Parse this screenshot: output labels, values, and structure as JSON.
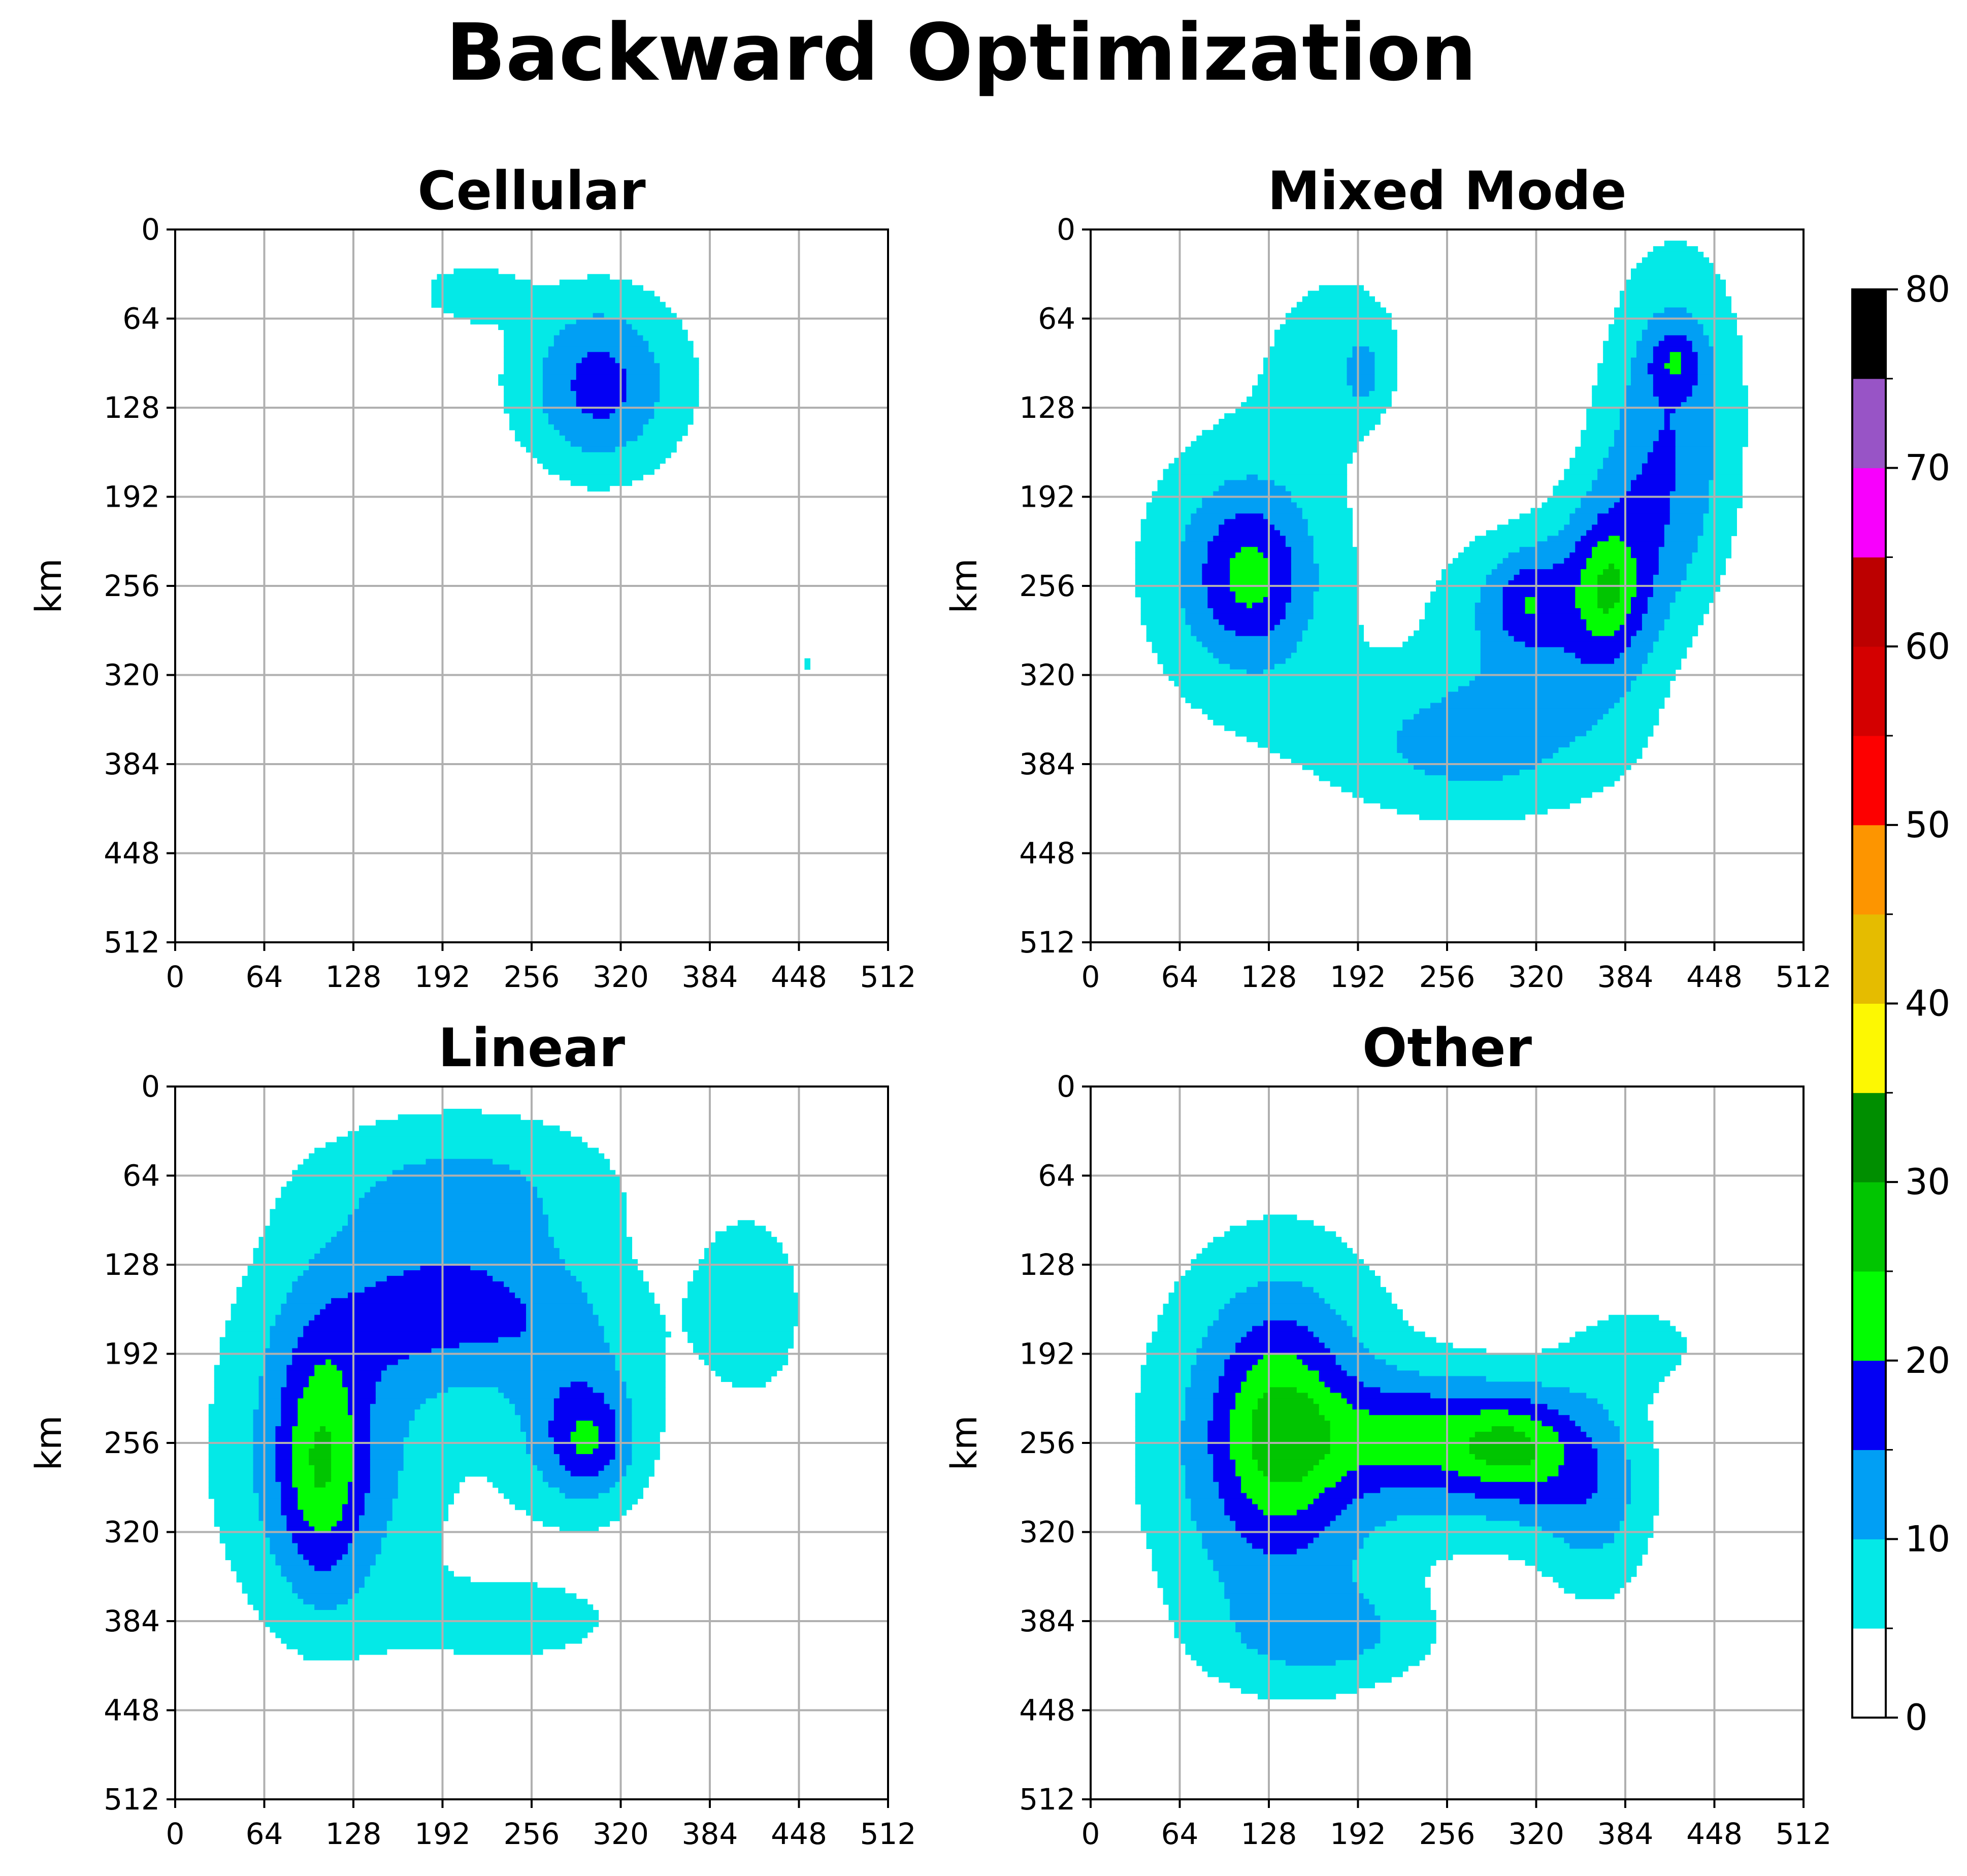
{
  "figure": {
    "title": "Backward Optimization"
  },
  "chart_data": {
    "type": "heatmap",
    "grid": true,
    "colorbar": {
      "ticks": [
        0,
        10,
        20,
        30,
        40,
        50,
        60,
        70,
        80
      ],
      "levels": [
        0,
        5,
        10,
        15,
        20,
        25,
        30,
        35,
        40,
        45,
        50,
        55,
        60,
        65,
        70,
        75,
        80
      ],
      "colors": [
        "#ffffff",
        "#04e9e7",
        "#019ff4",
        "#0300f4",
        "#02fd02",
        "#01c501",
        "#008e00",
        "#fdf802",
        "#e5bc00",
        "#fd9500",
        "#fd0000",
        "#d40000",
        "#bc0000",
        "#f800fd",
        "#9854c6",
        "#000000"
      ],
      "position": "right"
    },
    "panels": [
      {
        "title": "Cellular",
        "ylabel": "km",
        "xlim": [
          0,
          512
        ],
        "ylim": [
          512,
          0
        ],
        "xticks": [
          0,
          64,
          128,
          192,
          256,
          320,
          384,
          448,
          512
        ],
        "yticks": [
          0,
          64,
          128,
          192,
          256,
          320,
          384,
          448,
          512
        ],
        "features": [
          {
            "x": 210,
            "y": 45,
            "sx": 26,
            "sy": 15,
            "amp": 8
          },
          {
            "x": 305,
            "y": 108,
            "sx": 55,
            "sy": 55,
            "amp": 11,
            "rot": -0.3
          },
          {
            "x": 305,
            "y": 115,
            "sx": 28,
            "sy": 38,
            "amp": 6
          },
          {
            "x": 455,
            "y": 313,
            "sx": 3,
            "sy": 5,
            "amp": 7
          }
        ]
      },
      {
        "title": "Mixed Mode",
        "ylabel": "km",
        "xlim": [
          0,
          512
        ],
        "ylim": [
          512,
          0
        ],
        "xticks": [
          0,
          64,
          128,
          192,
          256,
          320,
          384,
          448,
          512
        ],
        "yticks": [
          0,
          64,
          128,
          192,
          256,
          320,
          384,
          448,
          512
        ],
        "features": [
          {
            "x": 180,
            "y": 85,
            "sx": 42,
            "sy": 50,
            "amp": 7.5
          },
          {
            "x": 197,
            "y": 105,
            "sx": 9,
            "sy": 16,
            "amp": 6
          },
          {
            "x": 110,
            "y": 245,
            "sx": 58,
            "sy": 78,
            "amp": 12
          },
          {
            "x": 115,
            "y": 250,
            "sx": 26,
            "sy": 36,
            "amp": 10
          },
          {
            "x": 420,
            "y": 100,
            "sx": 36,
            "sy": 72,
            "amp": 11
          },
          {
            "x": 420,
            "y": 95,
            "sx": 13,
            "sy": 15,
            "amp": 8
          },
          {
            "x": 405,
            "y": 210,
            "sx": 40,
            "sy": 65,
            "amp": 10
          },
          {
            "x": 370,
            "y": 270,
            "sx": 28,
            "sy": 55,
            "amp": 10
          },
          {
            "x": 372,
            "y": 258,
            "sx": 13,
            "sy": 26,
            "amp": 7
          },
          {
            "x": 310,
            "y": 268,
            "sx": 45,
            "sy": 42,
            "amp": 11
          },
          {
            "x": 312,
            "y": 268,
            "sx": 15,
            "sy": 22,
            "amp": 7
          },
          {
            "x": 275,
            "y": 370,
            "sx": 78,
            "sy": 42,
            "amp": 12
          }
        ]
      },
      {
        "title": "Linear",
        "ylabel": "km",
        "xlim": [
          0,
          512
        ],
        "ylim": [
          512,
          0
        ],
        "xticks": [
          0,
          64,
          128,
          192,
          256,
          320,
          384,
          448,
          512
        ],
        "yticks": [
          0,
          64,
          128,
          192,
          256,
          320,
          384,
          448,
          512
        ],
        "features": [
          {
            "x": 210,
            "y": 75,
            "sx": 85,
            "sy": 45,
            "amp": 11
          },
          {
            "x": 110,
            "y": 265,
            "sx": 60,
            "sy": 95,
            "amp": 14
          },
          {
            "x": 105,
            "y": 270,
            "sx": 20,
            "sy": 60,
            "amp": 12
          },
          {
            "x": 215,
            "y": 165,
            "sx": 75,
            "sy": 38,
            "amp": 13
          },
          {
            "x": 290,
            "y": 250,
            "sx": 40,
            "sy": 48,
            "amp": 13
          },
          {
            "x": 298,
            "y": 255,
            "sx": 18,
            "sy": 24,
            "amp": 8
          },
          {
            "x": 415,
            "y": 160,
            "sx": 34,
            "sy": 60,
            "amp": 7.5
          },
          {
            "x": 250,
            "y": 385,
            "sx": 60,
            "sy": 25,
            "amp": 7
          }
        ]
      },
      {
        "title": "Other",
        "ylabel": "km",
        "xlim": [
          0,
          512
        ],
        "ylim": [
          512,
          0
        ],
        "xticks": [
          0,
          64,
          128,
          192,
          256,
          320,
          384,
          448,
          512
        ],
        "yticks": [
          0,
          64,
          128,
          192,
          256,
          320,
          384,
          448,
          512
        ],
        "features": [
          {
            "x": 135,
            "y": 260,
            "sx": 70,
            "sy": 110,
            "amp": 15
          },
          {
            "x": 135,
            "y": 245,
            "sx": 30,
            "sy": 55,
            "amp": 12
          },
          {
            "x": 235,
            "y": 252,
            "sx": 55,
            "sy": 28,
            "amp": 12
          },
          {
            "x": 310,
            "y": 265,
            "sx": 55,
            "sy": 45,
            "amp": 13
          },
          {
            "x": 305,
            "y": 260,
            "sx": 25,
            "sy": 22,
            "amp": 8
          },
          {
            "x": 395,
            "y": 185,
            "sx": 35,
            "sy": 24,
            "amp": 7
          },
          {
            "x": 365,
            "y": 310,
            "sx": 30,
            "sy": 55,
            "amp": 8
          },
          {
            "x": 175,
            "y": 395,
            "sx": 55,
            "sy": 25,
            "amp": 7
          }
        ]
      }
    ]
  }
}
